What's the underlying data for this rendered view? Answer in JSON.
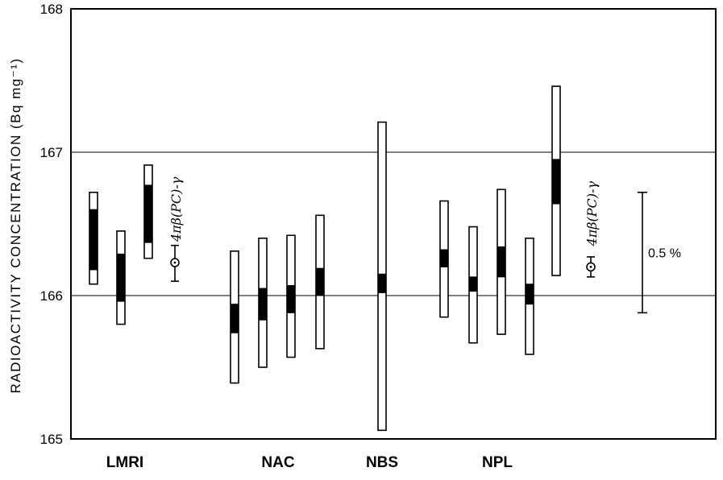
{
  "chart_data": {
    "type": "range-bar",
    "title": "",
    "ylabel": "RADIOACTIVITY  CONCENTRATION (Bq mg⁻¹)",
    "xlabel": "",
    "ylim": [
      165,
      168
    ],
    "yticks": [
      "165",
      "166",
      "167",
      "168"
    ],
    "gridlines": [
      166,
      167
    ],
    "groups": [
      {
        "label": "LMRI"
      },
      {
        "label": "NAC"
      },
      {
        "label": "NBS"
      },
      {
        "label": "NPL"
      }
    ],
    "bars": [
      {
        "group": "LMRI",
        "outer": [
          166.08,
          166.72
        ],
        "inner": [
          166.18,
          166.6
        ]
      },
      {
        "group": "LMRI",
        "outer": [
          165.8,
          166.45
        ],
        "inner": [
          165.96,
          166.29
        ]
      },
      {
        "group": "LMRI",
        "outer": [
          166.26,
          166.91
        ],
        "inner": [
          166.37,
          166.77
        ]
      },
      {
        "group": "NAC",
        "outer": [
          165.39,
          166.31
        ],
        "inner": [
          165.74,
          165.94
        ]
      },
      {
        "group": "NAC",
        "outer": [
          165.5,
          166.4
        ],
        "inner": [
          165.83,
          166.05
        ]
      },
      {
        "group": "NAC",
        "outer": [
          165.57,
          166.42
        ],
        "inner": [
          165.88,
          166.07
        ]
      },
      {
        "group": "NAC",
        "outer": [
          165.63,
          166.56
        ],
        "inner": [
          166.0,
          166.19
        ]
      },
      {
        "group": "NBS",
        "outer": [
          165.06,
          167.21
        ],
        "inner": [
          166.02,
          166.15
        ]
      },
      {
        "group": "NPL",
        "outer": [
          165.85,
          166.66
        ],
        "inner": [
          166.2,
          166.32
        ]
      },
      {
        "group": "NPL",
        "outer": [
          165.67,
          166.48
        ],
        "inner": [
          166.03,
          166.13
        ]
      },
      {
        "group": "NPL",
        "outer": [
          165.73,
          166.74
        ],
        "inner": [
          166.13,
          166.34
        ]
      },
      {
        "group": "NPL",
        "outer": [
          165.59,
          166.4
        ],
        "inner": [
          165.94,
          166.08
        ]
      },
      {
        "group": "NPL",
        "outer": [
          166.14,
          167.46
        ],
        "inner": [
          166.64,
          166.95
        ]
      }
    ],
    "points": [
      {
        "group": "LMRI",
        "value": 166.23,
        "low": 166.1,
        "high": 166.35,
        "annotation": "4πβ(PC)-γ"
      },
      {
        "group": "NPL",
        "value": 166.2,
        "low": 166.13,
        "high": 166.27,
        "annotation": "4πβ(PC)-γ"
      }
    ],
    "scale_bar": {
      "label": "0.5 %",
      "low": 165.88,
      "high": 166.72
    }
  }
}
